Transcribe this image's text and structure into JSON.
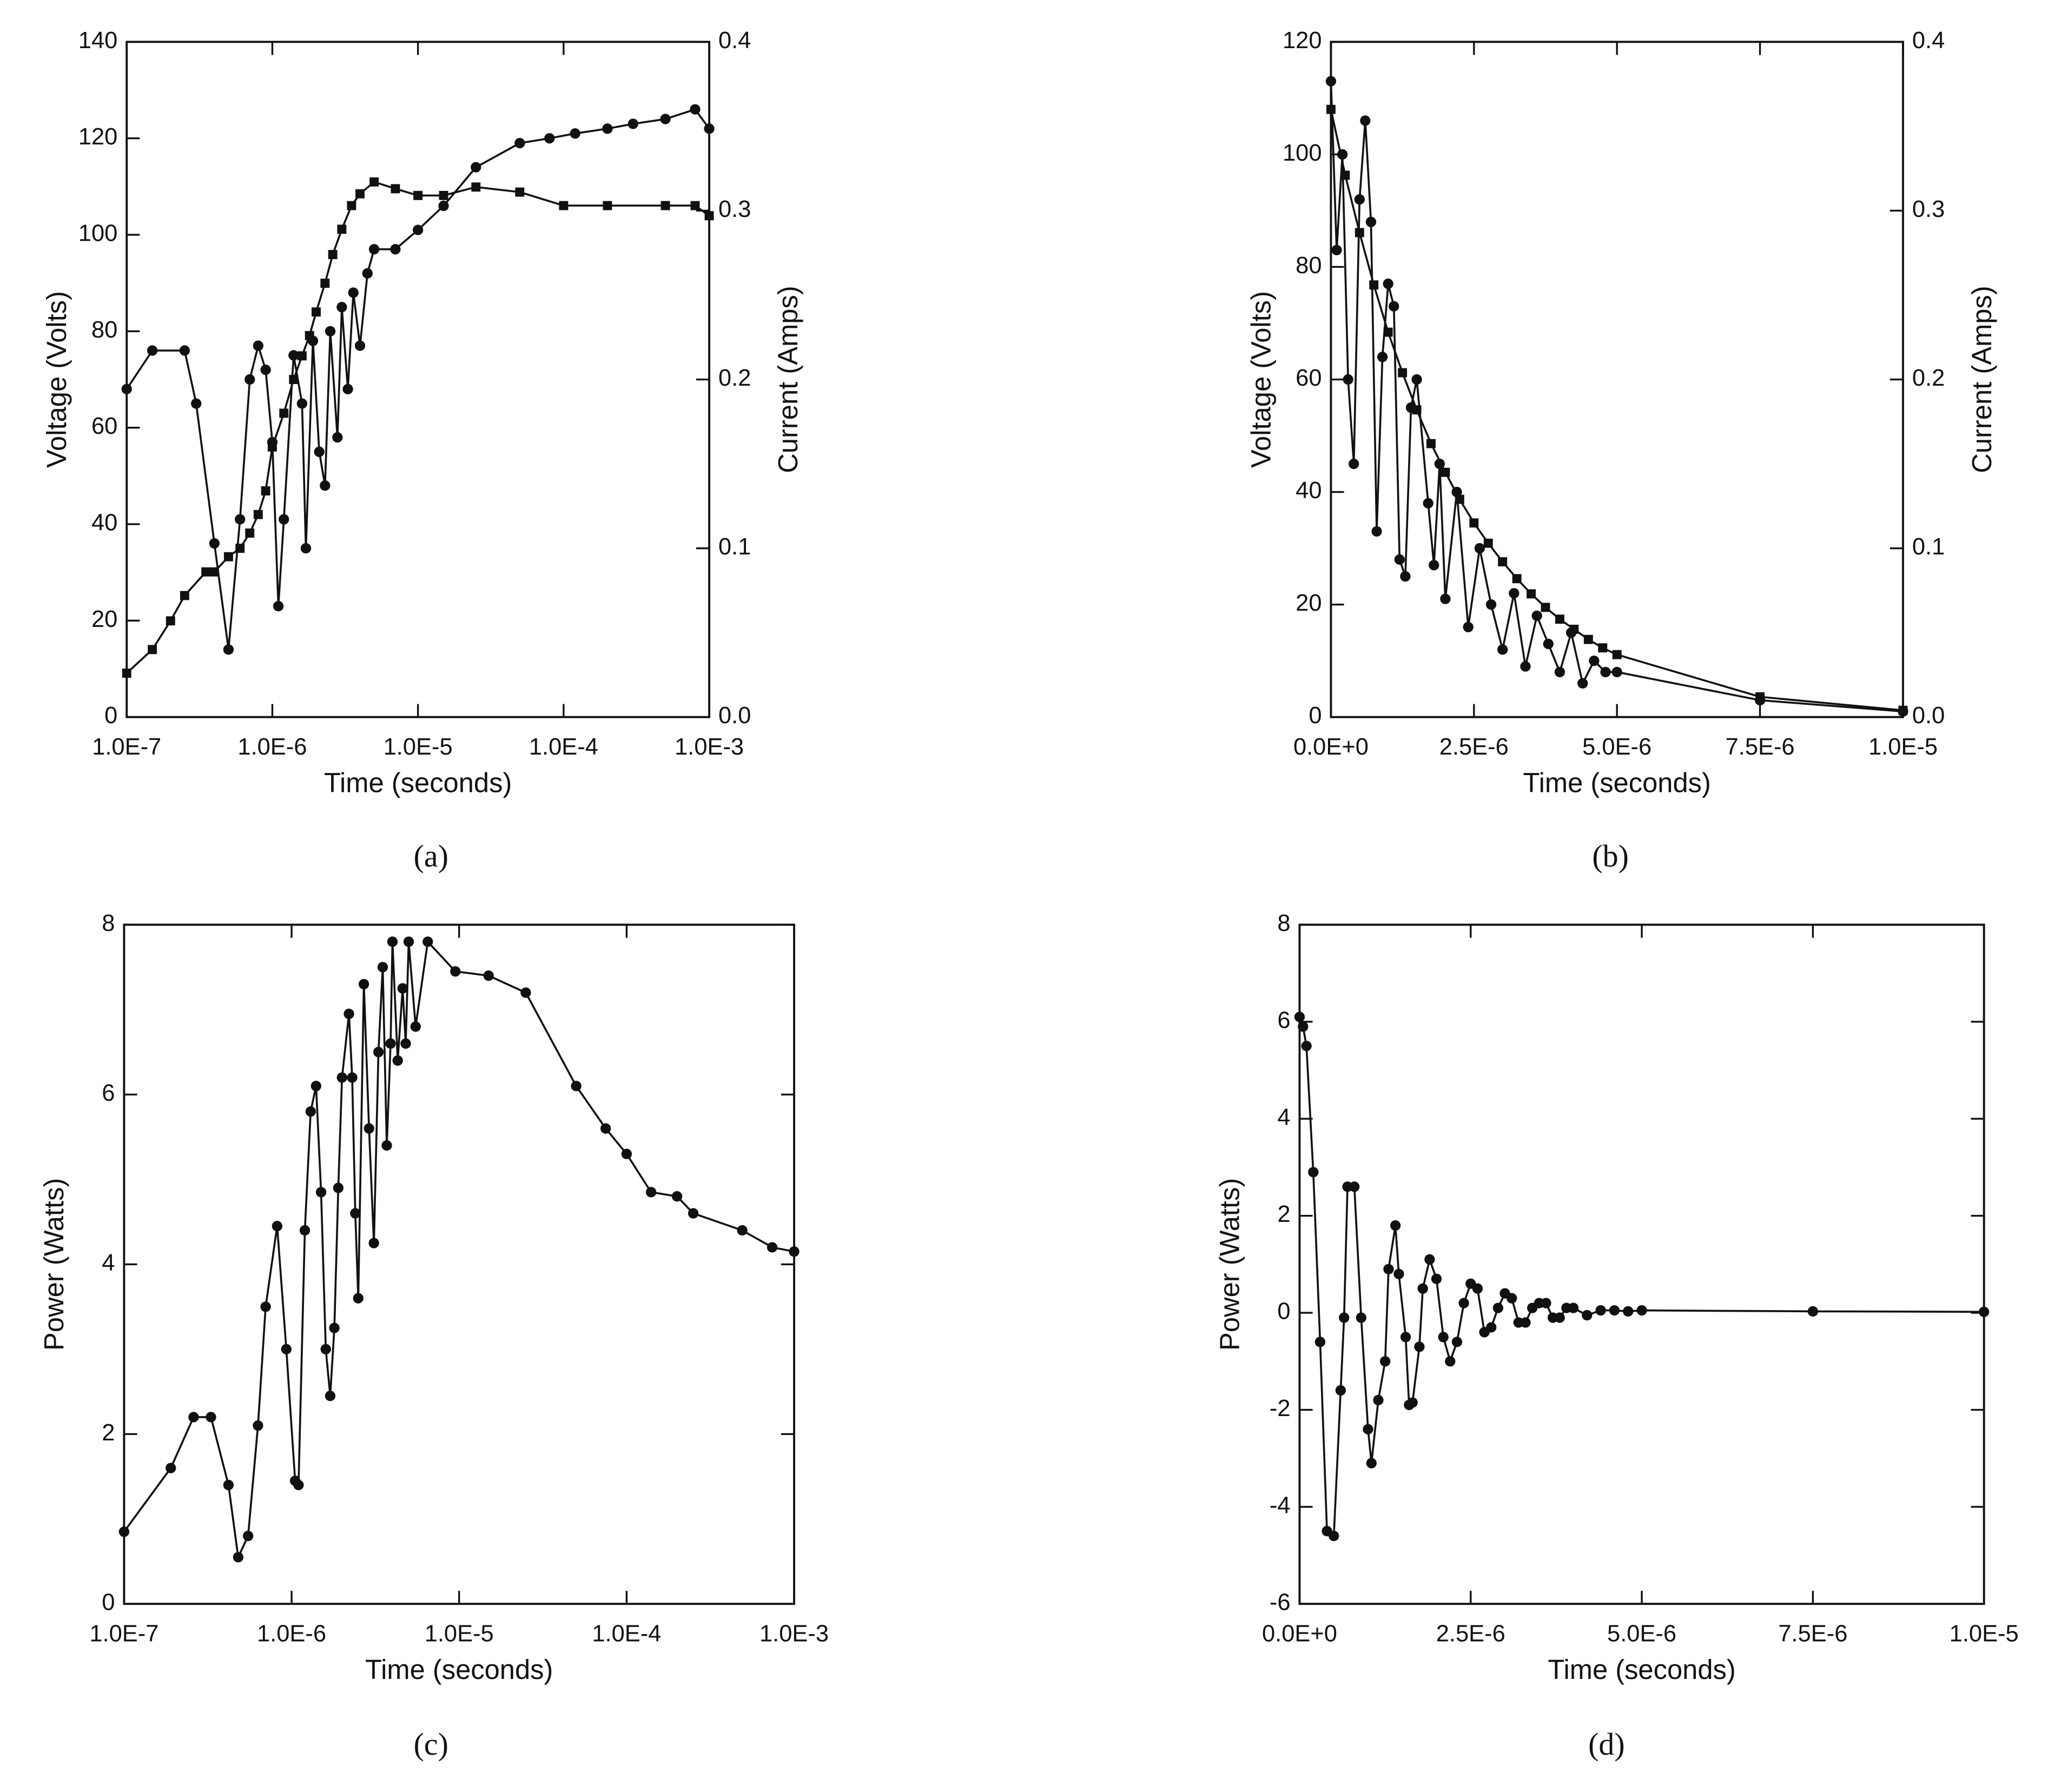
{
  "chart_data": [
    {
      "type": "line",
      "caption": "(a)",
      "xlabel": "Time (seconds)",
      "ylabel": "Voltage (Volts)",
      "y2label": "Current (Amps)",
      "xscale": "log",
      "xlim": [
        1e-07,
        0.001
      ],
      "xticks": [
        {
          "value": 1e-07,
          "label": "1.0E-7"
        },
        {
          "value": 1e-06,
          "label": "1.0E-6"
        },
        {
          "value": 1e-05,
          "label": "1.0E-5"
        },
        {
          "value": 0.0001,
          "label": "1.0E-4"
        },
        {
          "value": 0.001,
          "label": "1.0E-3"
        }
      ],
      "ylim": [
        0,
        140
      ],
      "yticks": [
        0,
        20,
        40,
        60,
        80,
        100,
        120,
        140
      ],
      "y2lim": [
        0,
        0.4
      ],
      "y2ticks": [
        {
          "value": 0,
          "label": "0.0"
        },
        0.1,
        0.2,
        0.3,
        0.4
      ],
      "grid": false,
      "series": [
        {
          "color": "#111111",
          "marker": "circle",
          "x": [
            1e-07,
            1.5e-07,
            2.5e-07,
            3e-07,
            4e-07,
            5e-07,
            6e-07,
            7e-07,
            8e-07,
            9e-07,
            1e-06,
            1.1e-06,
            1.2e-06,
            1.4e-06,
            1.6e-06,
            1.7e-06,
            1.9e-06,
            2.1e-06,
            2.3e-06,
            2.5e-06,
            2.8e-06,
            3e-06,
            3.3e-06,
            3.6e-06,
            4e-06,
            4.5e-06,
            5e-06,
            7e-06,
            1e-05,
            1.5e-05,
            2.5e-05,
            5e-05,
            8e-05,
            0.00012,
            0.0002,
            0.0003,
            0.0005,
            0.0008,
            0.001
          ],
          "values": [
            68,
            76,
            76,
            65,
            36,
            14,
            41,
            70,
            77,
            72,
            57,
            23,
            41,
            75,
            65,
            35,
            78,
            55,
            48,
            80,
            58,
            85,
            68,
            88,
            77,
            92,
            97,
            97,
            101,
            106,
            114,
            119,
            120,
            121,
            122,
            123,
            124,
            126,
            122
          ]
        },
        {
          "color": "#111111",
          "marker": "square",
          "axis": "y2",
          "x": [
            1e-07,
            1.5e-07,
            2e-07,
            2.5e-07,
            3.5e-07,
            4e-07,
            5e-07,
            6e-07,
            7e-07,
            8e-07,
            9e-07,
            1e-06,
            1.2e-06,
            1.4e-06,
            1.6e-06,
            1.8e-06,
            2e-06,
            2.3e-06,
            2.6e-06,
            3e-06,
            3.5e-06,
            4e-06,
            5e-06,
            7e-06,
            1e-05,
            1.5e-05,
            2.5e-05,
            5e-05,
            0.0001,
            0.0002,
            0.0005,
            0.0008,
            0.001
          ],
          "values": [
            0.026,
            0.04,
            0.057,
            0.072,
            0.086,
            0.086,
            0.095,
            0.1,
            0.109,
            0.12,
            0.134,
            0.16,
            0.18,
            0.2,
            0.214,
            0.226,
            0.24,
            0.257,
            0.274,
            0.289,
            0.303,
            0.31,
            0.317,
            0.313,
            0.309,
            0.309,
            0.314,
            0.311,
            0.303,
            0.303,
            0.303,
            0.303,
            0.297
          ]
        }
      ]
    },
    {
      "type": "line",
      "caption": "(b)",
      "xlabel": "Time (seconds)",
      "ylabel": "Voltage (Volts)",
      "y2label": "Current (Amps)",
      "xscale": "linear",
      "xlim": [
        0,
        1e-05
      ],
      "xticks": [
        {
          "value": 0,
          "label": "0.0E+0"
        },
        {
          "value": 2.5e-06,
          "label": "2.5E-6"
        },
        {
          "value": 5e-06,
          "label": "5.0E-6"
        },
        {
          "value": 7.5e-06,
          "label": "7.5E-6"
        },
        {
          "value": 1e-05,
          "label": "1.0E-5"
        }
      ],
      "ylim": [
        0,
        120
      ],
      "yticks": [
        0,
        20,
        40,
        60,
        80,
        100,
        120
      ],
      "y2lim": [
        0,
        0.4
      ],
      "y2ticks": [
        {
          "value": 0,
          "label": "0.0"
        },
        0.1,
        0.2,
        0.3,
        0.4
      ],
      "grid": false,
      "series": [
        {
          "color": "#111111",
          "marker": "circle",
          "x": [
            0,
            1e-07,
            2e-07,
            3e-07,
            4e-07,
            5e-07,
            6e-07,
            7e-07,
            8e-07,
            9e-07,
            1e-06,
            1.1e-06,
            1.2e-06,
            1.3e-06,
            1.4e-06,
            1.5e-06,
            1.7e-06,
            1.8e-06,
            1.9e-06,
            2e-06,
            2.2e-06,
            2.4e-06,
            2.6e-06,
            2.8e-06,
            3e-06,
            3.2e-06,
            3.4e-06,
            3.6e-06,
            3.8e-06,
            4e-06,
            4.2e-06,
            4.4e-06,
            4.6e-06,
            4.8e-06,
            5e-06,
            7.5e-06,
            1e-05
          ],
          "values": [
            113,
            83,
            100,
            60,
            45,
            92,
            106,
            88,
            33,
            64,
            77,
            73,
            28,
            25,
            55,
            60,
            38,
            27,
            45,
            21,
            40,
            16,
            30,
            20,
            12,
            22,
            9,
            18,
            13,
            8,
            15,
            6,
            10,
            8,
            8,
            3,
            1
          ]
        },
        {
          "color": "#111111",
          "marker": "square",
          "axis": "y2",
          "x": [
            0,
            2.5e-07,
            5e-07,
            7.5e-07,
            1e-06,
            1.25e-06,
            1.5e-06,
            1.75e-06,
            2e-06,
            2.25e-06,
            2.5e-06,
            2.75e-06,
            3e-06,
            3.25e-06,
            3.5e-06,
            3.75e-06,
            4e-06,
            4.25e-06,
            4.5e-06,
            4.75e-06,
            5e-06,
            7.5e-06,
            1e-05
          ],
          "values": [
            0.36,
            0.321,
            0.287,
            0.256,
            0.228,
            0.204,
            0.182,
            0.162,
            0.145,
            0.129,
            0.115,
            0.103,
            0.092,
            0.082,
            0.073,
            0.065,
            0.058,
            0.052,
            0.046,
            0.041,
            0.037,
            0.012,
            0.004
          ]
        }
      ]
    },
    {
      "type": "line",
      "caption": "(c)",
      "xlabel": "Time (seconds)",
      "ylabel": "Power (Watts)",
      "xscale": "log",
      "xlim": [
        1e-07,
        0.001
      ],
      "xticks": [
        {
          "value": 1e-07,
          "label": "1.0E-7"
        },
        {
          "value": 1e-06,
          "label": "1.0E-6"
        },
        {
          "value": 1e-05,
          "label": "1.0E-5"
        },
        {
          "value": 0.0001,
          "label": "1.0E-4"
        },
        {
          "value": 0.001,
          "label": "1.0E-3"
        }
      ],
      "ylim": [
        0,
        8
      ],
      "yticks": [
        0,
        2,
        4,
        6,
        8
      ],
      "grid": false,
      "series": [
        {
          "color": "#111111",
          "marker": "circle",
          "x": [
            1e-07,
            1.9e-07,
            2.6e-07,
            3.3e-07,
            4.2e-07,
            4.8e-07,
            5.5e-07,
            6.3e-07,
            7e-07,
            8.2e-07,
            9.3e-07,
            1.05e-06,
            1.1e-06,
            1.2e-06,
            1.3e-06,
            1.4e-06,
            1.5e-06,
            1.6e-06,
            1.7e-06,
            1.8e-06,
            1.9e-06,
            2e-06,
            2.2e-06,
            2.3e-06,
            2.4e-06,
            2.5e-06,
            2.7e-06,
            2.9e-06,
            3.1e-06,
            3.3e-06,
            3.5e-06,
            3.7e-06,
            3.9e-06,
            4e-06,
            4.3e-06,
            4.6e-06,
            4.8e-06,
            5e-06,
            5.5e-06,
            6.5e-06,
            9.5e-06,
            1.5e-05,
            2.5e-05,
            5e-05,
            7.5e-05,
            0.0001,
            0.00014,
            0.0002,
            0.00025,
            0.00049,
            0.00074,
            0.001
          ],
          "values": [
            0.85,
            1.6,
            2.2,
            2.2,
            1.4,
            0.55,
            0.8,
            2.1,
            3.5,
            4.45,
            3.0,
            1.45,
            1.4,
            4.4,
            5.8,
            6.1,
            4.85,
            3.0,
            2.45,
            3.25,
            4.9,
            6.2,
            6.95,
            6.2,
            4.6,
            3.6,
            7.3,
            5.6,
            4.25,
            6.5,
            7.5,
            5.4,
            6.6,
            7.8,
            6.4,
            7.25,
            6.6,
            7.8,
            6.8,
            7.8,
            7.45,
            7.4,
            7.2,
            6.1,
            5.6,
            5.3,
            4.85,
            4.8,
            4.6,
            4.4,
            4.2,
            4.15
          ]
        }
      ]
    },
    {
      "type": "line",
      "caption": "(d)",
      "xlabel": "Time (seconds)",
      "ylabel": "Power (Watts)",
      "xscale": "linear",
      "xlim": [
        0,
        1e-05
      ],
      "xticks": [
        {
          "value": 0,
          "label": "0.0E+0"
        },
        {
          "value": 2.5e-06,
          "label": "2.5E-6"
        },
        {
          "value": 5e-06,
          "label": "5.0E-6"
        },
        {
          "value": 7.5e-06,
          "label": "7.5E-6"
        },
        {
          "value": 1e-05,
          "label": "1.0E-5"
        }
      ],
      "ylim": [
        -6,
        8
      ],
      "yticks": [
        -6,
        -4,
        -2,
        0,
        2,
        4,
        6,
        8
      ],
      "grid": false,
      "series": [
        {
          "color": "#111111",
          "marker": "circle",
          "x": [
            0,
            5e-08,
            1e-07,
            2e-07,
            3e-07,
            4e-07,
            5e-07,
            6e-07,
            6.5e-07,
            7e-07,
            8e-07,
            9e-07,
            1e-06,
            1.05e-06,
            1.15e-06,
            1.25e-06,
            1.3e-06,
            1.4e-06,
            1.45e-06,
            1.55e-06,
            1.6e-06,
            1.65e-06,
            1.75e-06,
            1.8e-06,
            1.9e-06,
            2e-06,
            2.1e-06,
            2.2e-06,
            2.3e-06,
            2.4e-06,
            2.5e-06,
            2.6e-06,
            2.7e-06,
            2.8e-06,
            2.9e-06,
            3e-06,
            3.1e-06,
            3.2e-06,
            3.3e-06,
            3.4e-06,
            3.5e-06,
            3.6e-06,
            3.7e-06,
            3.8e-06,
            3.9e-06,
            4e-06,
            4.2e-06,
            4.4e-06,
            4.6e-06,
            4.8e-06,
            5e-06,
            7.5e-06,
            1e-05
          ],
          "values": [
            6.1,
            5.9,
            5.5,
            2.9,
            -0.6,
            -4.5,
            -4.6,
            -1.6,
            -0.1,
            2.6,
            2.6,
            -0.1,
            -2.4,
            -3.1,
            -1.8,
            -1.0,
            0.9,
            1.8,
            0.8,
            -0.5,
            -1.9,
            -1.85,
            -0.7,
            0.5,
            1.1,
            0.7,
            -0.5,
            -1.0,
            -0.6,
            0.2,
            0.6,
            0.5,
            -0.4,
            -0.3,
            0.1,
            0.4,
            0.3,
            -0.2,
            -0.2,
            0.1,
            0.2,
            0.2,
            -0.1,
            -0.1,
            0.1,
            0.1,
            -0.05,
            0.05,
            0.05,
            0.03,
            0.05,
            0.03,
            0.02
          ]
        }
      ]
    }
  ]
}
